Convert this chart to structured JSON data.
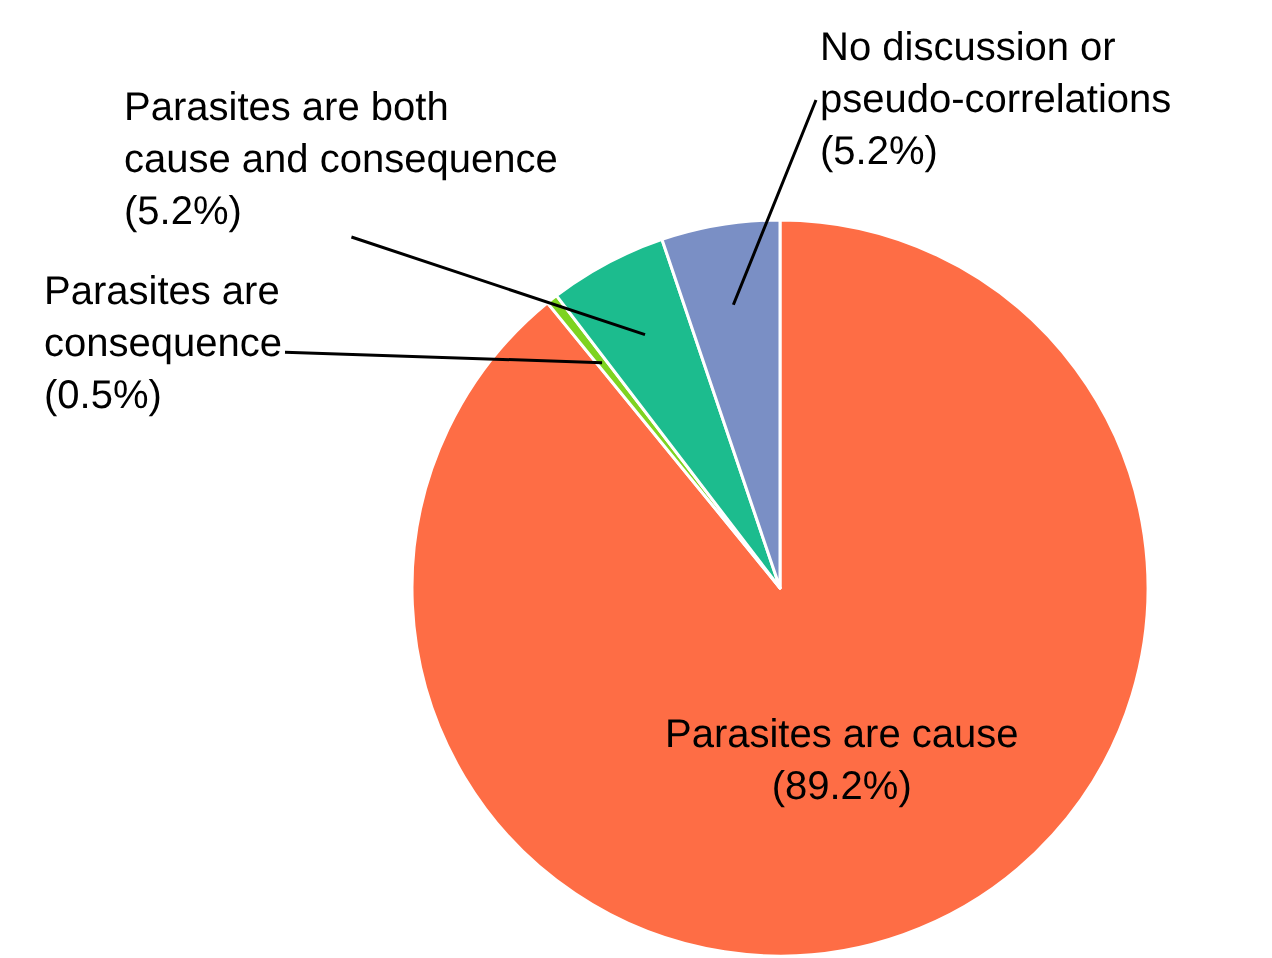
{
  "chart_data": {
    "type": "pie",
    "categories": [
      "Parasites are cause",
      "Parasites are consequence",
      "Parasites are both cause and consequence",
      "No discussion or pseudo-correlations"
    ],
    "values": [
      89.2,
      0.5,
      5.2,
      5.2
    ],
    "value_labels": [
      "(89.2%)",
      "(0.5%)",
      "(5.2%)",
      "(5.2%)"
    ],
    "colors": [
      "#fe6d45",
      "#7ed321",
      "#1cbc8e",
      "#7a8fc5"
    ],
    "legend": false
  }
}
